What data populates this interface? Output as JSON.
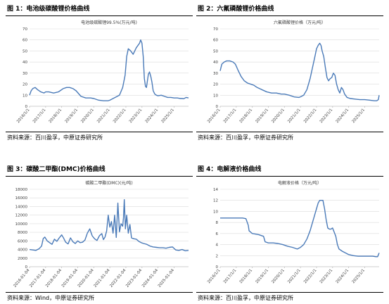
{
  "charts": [
    {
      "panel_title": "图 1：电池级碳酸锂价格曲线",
      "source": "资料来源：百川盈孚，中原证券研究所",
      "chart_data": {
        "type": "line",
        "title": "电池级碳酸锂99.5%(万元/吨)",
        "ylim": [
          0,
          70
        ],
        "yticks": [
          0,
          10,
          20,
          30,
          40,
          50,
          60,
          70
        ],
        "xlim": [
          2016.0,
          2025.9
        ],
        "xtick_labels": [
          "2016/1/1",
          "2017/1/1",
          "2018/1/1",
          "2019/1/1",
          "2020/1/1",
          "2021/1/1",
          "2022/1/1",
          "2023/1/1",
          "2024/1/1",
          "2025/1/1"
        ],
        "xtick_positions": [
          2016,
          2017,
          2018,
          2019,
          2020,
          2021,
          2022,
          2023,
          2024,
          2025
        ],
        "x": [
          2016.0,
          2016.1,
          2016.2,
          2016.35,
          2016.5,
          2016.7,
          2016.9,
          2017.0,
          2017.2,
          2017.5,
          2017.8,
          2017.9,
          2018.1,
          2018.3,
          2018.5,
          2018.7,
          2018.9,
          2019.2,
          2019.5,
          2019.8,
          2020.0,
          2020.3,
          2020.6,
          2020.9,
          2021.0,
          2021.2,
          2021.4,
          2021.6,
          2021.8,
          2021.95,
          2022.05,
          2022.15,
          2022.3,
          2022.45,
          2022.55,
          2022.65,
          2022.75,
          2022.85,
          2022.92,
          2023.0,
          2023.08,
          2023.15,
          2023.22,
          2023.28,
          2023.33,
          2023.4,
          2023.47,
          2023.55,
          2023.62,
          2023.7,
          2023.8,
          2023.9,
          2024.0,
          2024.2,
          2024.4,
          2024.6,
          2024.8,
          2025.0,
          2025.2,
          2025.4,
          2025.5,
          2025.6,
          2025.75,
          2025.9
        ],
        "y": [
          10,
          14,
          16,
          17,
          15,
          13,
          12,
          13,
          13,
          12,
          13,
          14,
          16,
          17,
          17,
          16,
          14,
          9,
          7.5,
          7.5,
          7,
          5.5,
          5,
          5,
          5.5,
          7,
          8.5,
          10,
          17,
          28,
          45,
          52,
          50,
          47,
          50,
          53,
          55,
          57,
          60,
          57,
          45,
          25,
          18,
          17,
          22,
          29,
          31,
          27,
          22,
          14,
          11,
          10,
          9.5,
          10,
          9,
          8,
          8,
          7.5,
          7.5,
          7,
          7,
          6.8,
          8,
          7.5
        ]
      }
    },
    {
      "panel_title": "图 2：六氟磷酸锂价格曲线",
      "source": "资料来源：百川盈孚，中原证券研究所",
      "chart_data": {
        "type": "line",
        "title": "六氟磷酸锂价格（万元/吨）",
        "ylim": [
          0,
          70
        ],
        "yticks": [
          0,
          10,
          20,
          30,
          40,
          50,
          60,
          70
        ],
        "xlim": [
          2016.0,
          2025.9
        ],
        "xtick_labels": [
          "2016/1/1",
          "2017/1/1",
          "2018/1/1",
          "2019/1/1",
          "2020/1/1",
          "2021/1/1",
          "2022/1/1",
          "2023/1/1",
          "2024/1/1",
          "2025/1/1"
        ],
        "xtick_positions": [
          2016,
          2017,
          2018,
          2019,
          2020,
          2021,
          2022,
          2023,
          2024,
          2025
        ],
        "x": [
          2016.0,
          2016.1,
          2016.25,
          2016.4,
          2016.6,
          2016.8,
          2016.95,
          2017.1,
          2017.3,
          2017.5,
          2017.7,
          2017.9,
          2018.1,
          2018.3,
          2018.6,
          2018.9,
          2019.2,
          2019.5,
          2019.8,
          2020.0,
          2020.3,
          2020.6,
          2020.9,
          2021.0,
          2021.2,
          2021.4,
          2021.6,
          2021.75,
          2021.9,
          2022.0,
          2022.1,
          2022.2,
          2022.28,
          2022.35,
          2022.45,
          2022.55,
          2022.65,
          2022.75,
          2022.85,
          2022.95,
          2023.05,
          2023.15,
          2023.25,
          2023.35,
          2023.45,
          2023.55,
          2023.65,
          2023.75,
          2023.9,
          2024.1,
          2024.4,
          2024.7,
          2025.0,
          2025.3,
          2025.6,
          2025.75,
          2025.85,
          2025.9
        ],
        "y": [
          32,
          38,
          40,
          41,
          41,
          40,
          38,
          33,
          27,
          23,
          21,
          20,
          19,
          17,
          15,
          13,
          12,
          12,
          11,
          11,
          10,
          8.5,
          8,
          8.5,
          10,
          15,
          25,
          35,
          45,
          52,
          55,
          57,
          55,
          50,
          45,
          35,
          26,
          23,
          25,
          26,
          30,
          28,
          20,
          15,
          12,
          17,
          15,
          11,
          8,
          7,
          6.5,
          6,
          6,
          5.5,
          5,
          5,
          6,
          10
        ]
      }
    },
    {
      "panel_title": "图 3：碳酸二甲酯(DMC)价格曲线",
      "source": "资料来源：Wind，中原证券研究所",
      "chart_data": {
        "type": "line",
        "title": "碳酸二甲酯(DMC)(元/吨)",
        "ylim": [
          0,
          18000
        ],
        "yticks": [
          0,
          2000,
          4000,
          6000,
          8000,
          10000,
          12000,
          14000,
          16000,
          18000
        ],
        "xlim": [
          2016.0,
          2025.9
        ],
        "xtick_labels": [
          "2016-01-04",
          "2017-01-04",
          "2018-01-04",
          "2019-01-04",
          "2020-01-04",
          "2021-01-04",
          "2022-01-04",
          "2023-01-04",
          "2024-01-04",
          "2025-01-04"
        ],
        "xtick_positions": [
          2016,
          2017,
          2018,
          2019,
          2020,
          2021,
          2022,
          2023,
          2024,
          2025
        ],
        "x": [
          2016.0,
          2016.2,
          2016.4,
          2016.6,
          2016.75,
          2016.85,
          2016.95,
          2017.1,
          2017.25,
          2017.4,
          2017.55,
          2017.7,
          2017.85,
          2018.0,
          2018.1,
          2018.25,
          2018.4,
          2018.55,
          2018.7,
          2018.85,
          2019.0,
          2019.15,
          2019.3,
          2019.45,
          2019.6,
          2019.75,
          2019.9,
          2020.05,
          2020.2,
          2020.35,
          2020.5,
          2020.6,
          2020.7,
          2020.8,
          2020.9,
          2021.0,
          2021.1,
          2021.2,
          2021.3,
          2021.4,
          2021.5,
          2021.6,
          2021.7,
          2021.8,
          2021.85,
          2021.9,
          2021.97,
          2022.05,
          2022.15,
          2022.25,
          2022.35,
          2022.5,
          2022.65,
          2022.8,
          2022.95,
          2023.1,
          2023.3,
          2023.5,
          2023.7,
          2023.9,
          2024.1,
          2024.3,
          2024.5,
          2024.7,
          2024.9,
          2025.1,
          2025.3,
          2025.5,
          2025.7,
          2025.9
        ],
        "y": [
          4000,
          3900,
          3800,
          4200,
          4800,
          6500,
          6900,
          6000,
          5600,
          5200,
          6400,
          5900,
          6700,
          7400,
          6800,
          5700,
          5300,
          6700,
          5800,
          5400,
          6000,
          5600,
          5700,
          6200,
          7800,
          8800,
          7200,
          6500,
          6100,
          7200,
          7700,
          6300,
          6900,
          8300,
          12000,
          9200,
          10500,
          7800,
          12000,
          6800,
          14800,
          8100,
          10000,
          9400,
          11400,
          15600,
          8800,
          12000,
          7800,
          9800,
          6700,
          6500,
          6400,
          5900,
          5600,
          5400,
          5200,
          4800,
          4600,
          4500,
          4400,
          4400,
          4300,
          4500,
          4600,
          3900,
          3800,
          4000,
          3700,
          3800
        ]
      }
    },
    {
      "panel_title": "图 4：电解液价格曲线",
      "source": "资料来源：百川盈孚，中原证券研究所",
      "chart_data": {
        "type": "line",
        "title": "电解液价格（万元/吨）",
        "ylim": [
          0,
          14
        ],
        "yticks": [
          0,
          2,
          4,
          6,
          8,
          10,
          12,
          14
        ],
        "xlim": [
          2016.0,
          2025.9
        ],
        "xtick_labels": [
          "2016/1/1",
          "2017/1/1",
          "2018/1/1",
          "2019/1/1",
          "2020/1/1",
          "2021/1/1",
          "2022/1/1",
          "2023/1/1",
          "2024/1/1",
          "2025/1/1"
        ],
        "xtick_positions": [
          2016,
          2017,
          2018,
          2019,
          2020,
          2021,
          2022,
          2023,
          2024,
          2025
        ],
        "x": [
          2016.0,
          2016.5,
          2017.0,
          2017.4,
          2017.6,
          2017.75,
          2017.8,
          2018.0,
          2018.4,
          2018.7,
          2018.8,
          2019.0,
          2019.3,
          2019.6,
          2019.9,
          2020.2,
          2020.5,
          2020.8,
          2021.0,
          2021.2,
          2021.4,
          2021.6,
          2021.8,
          2021.9,
          2022.0,
          2022.1,
          2022.2,
          2022.3,
          2022.4,
          2022.5,
          2022.6,
          2022.7,
          2022.8,
          2022.9,
          2023.0,
          2023.2,
          2023.3,
          2023.4,
          2023.6,
          2023.8,
          2024.0,
          2024.3,
          2024.6,
          2024.9,
          2025.2,
          2025.5,
          2025.7,
          2025.8,
          2025.9
        ],
        "y": [
          8.8,
          8.8,
          8.8,
          8.8,
          8.7,
          7.5,
          6.5,
          6.0,
          5.8,
          5.5,
          4.5,
          4.3,
          4.3,
          4.2,
          4.0,
          3.7,
          3.5,
          3.2,
          3.5,
          4.0,
          5.0,
          6.5,
          8.5,
          9.5,
          10.5,
          11.5,
          12.0,
          12.0,
          12.0,
          10.5,
          8.5,
          7.0,
          6.8,
          6.8,
          7.0,
          5.5,
          4.0,
          3.2,
          2.8,
          2.5,
          2.2,
          2.0,
          1.9,
          1.9,
          1.9,
          1.9,
          1.8,
          1.8,
          2.5
        ]
      }
    }
  ]
}
